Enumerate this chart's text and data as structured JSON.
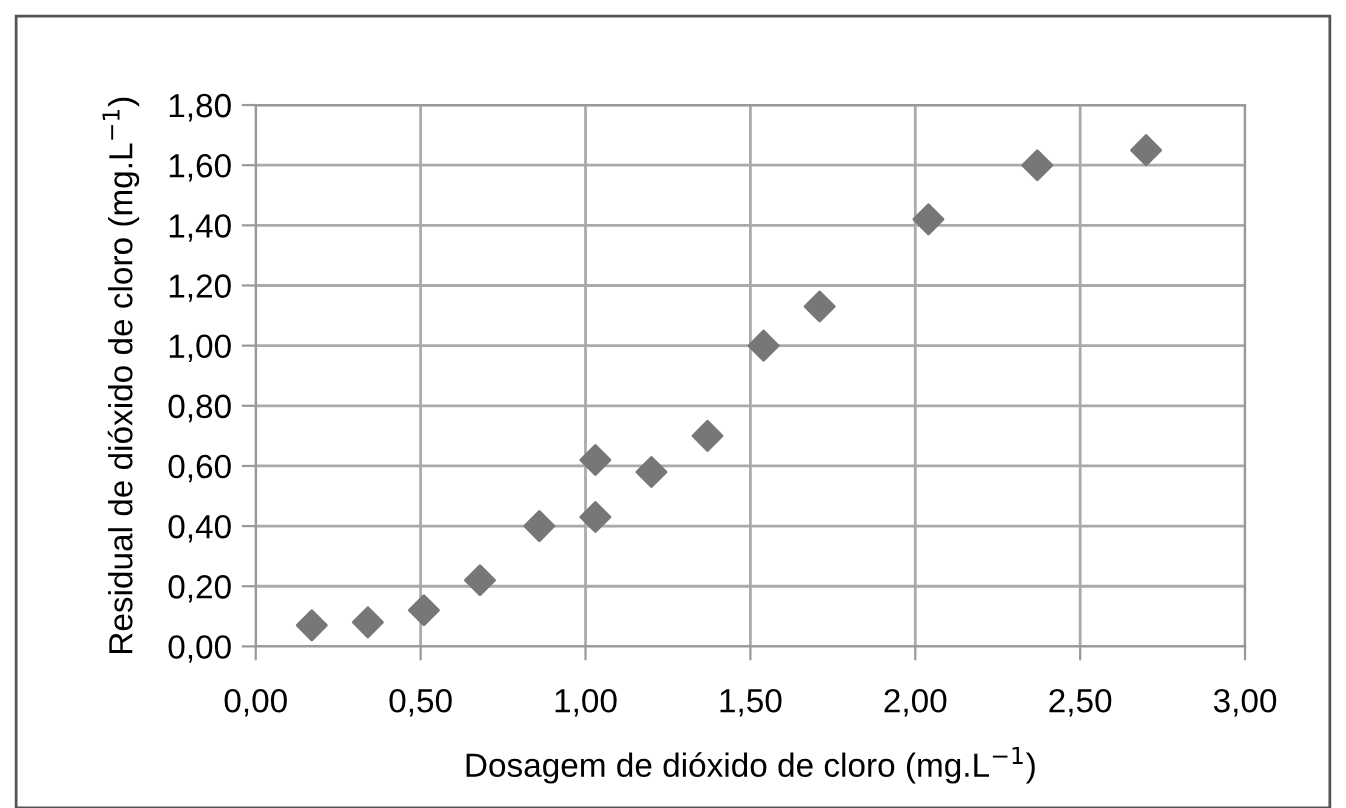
{
  "chart_data": {
    "type": "scatter",
    "xlabel": "Dosagem de dióxido de cloro (mg.L$^{−1}$)",
    "ylabel": "Residual de dióxido de cloro (mg.L$^{−1}$)",
    "x": [
      0.17,
      0.34,
      0.51,
      0.68,
      0.86,
      1.03,
      1.03,
      1.2,
      1.37,
      1.54,
      1.71,
      2.04,
      2.37,
      2.7
    ],
    "series": [
      {
        "color": "#777777",
        "values": [
          0.07,
          0.08,
          0.12,
          0.22,
          0.4,
          0.43,
          0.62,
          0.58,
          0.7,
          1.0,
          1.13,
          1.42,
          1.6,
          1.65
        ]
      }
    ],
    "marker": "diamond",
    "xlim": [
      0,
      3
    ],
    "ylim": [
      0,
      1.8
    ],
    "xticks": [
      {
        "value": 0,
        "label": "0,00"
      },
      {
        "value": 0.5,
        "label": "0,50"
      },
      {
        "value": 1,
        "label": "1,00"
      },
      {
        "value": 1.5,
        "label": "1,50"
      },
      {
        "value": 2,
        "label": "2,00"
      },
      {
        "value": 2.5,
        "label": "2,50"
      },
      {
        "value": 3,
        "label": "3,00"
      }
    ],
    "yticks": [
      {
        "value": 0,
        "label": "0,00"
      },
      {
        "value": 0.2,
        "label": "0,20"
      },
      {
        "value": 0.4,
        "label": "0,40"
      },
      {
        "value": 0.6,
        "label": "0,60"
      },
      {
        "value": 0.8,
        "label": "0,80"
      },
      {
        "value": 1,
        "label": "1,00"
      },
      {
        "value": 1.2,
        "label": "1,20"
      },
      {
        "value": 1.4,
        "label": "1,40"
      },
      {
        "value": 1.6,
        "label": "1,60"
      },
      {
        "value": 1.8,
        "label": "1,80"
      }
    ],
    "grid": true
  }
}
